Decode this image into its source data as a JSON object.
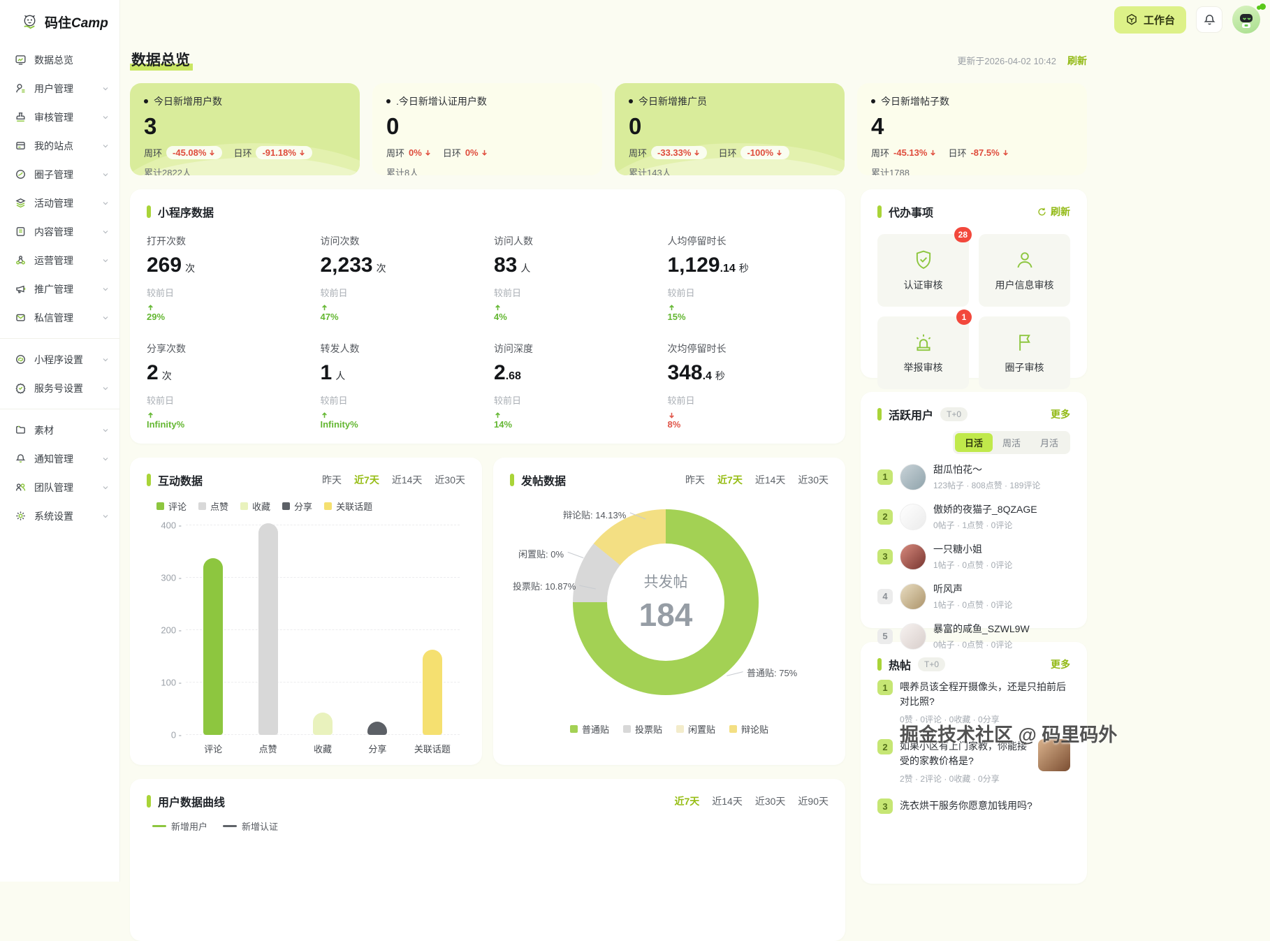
{
  "header": {
    "logo_cn": "码住Camp_cn_unused",
    "logo_main": "码住",
    "logo_en": "Camp",
    "workbench_label": "工作台"
  },
  "sidebar": {
    "groups": [
      {
        "items": [
          {
            "label": "数据总览",
            "icon": "monitor",
            "chevron": false
          },
          {
            "label": "用户管理",
            "icon": "user",
            "chevron": true
          },
          {
            "label": "审核管理",
            "icon": "stamp",
            "chevron": true
          },
          {
            "label": "我的站点",
            "icon": "site",
            "chevron": true
          },
          {
            "label": "圈子管理",
            "icon": "circle",
            "chevron": true
          },
          {
            "label": "活动管理",
            "icon": "layers",
            "chevron": true
          },
          {
            "label": "内容管理",
            "icon": "doc",
            "chevron": true
          },
          {
            "label": "运营管理",
            "icon": "nodes",
            "chevron": true
          },
          {
            "label": "推广管理",
            "icon": "megaphone",
            "chevron": true
          },
          {
            "label": "私信管理",
            "icon": "mail",
            "chevron": true
          }
        ]
      },
      {
        "items": [
          {
            "label": "小程序设置",
            "icon": "mini",
            "chevron": true
          },
          {
            "label": "服务号设置",
            "icon": "badge",
            "chevron": true
          }
        ]
      },
      {
        "items": [
          {
            "label": "素材",
            "icon": "folder",
            "chevron": true
          },
          {
            "label": "通知管理",
            "icon": "bell",
            "chevron": true
          },
          {
            "label": "团队管理",
            "icon": "team",
            "chevron": true
          },
          {
            "label": "系统设置",
            "icon": "gear",
            "chevron": true
          }
        ]
      }
    ]
  },
  "page": {
    "title": "数据总览",
    "updated": "更新于2026-04-02 10:42",
    "refresh_label": "刷新"
  },
  "stat_cards": [
    {
      "label": "今日新增用户数",
      "value": "3",
      "week_label": "周环",
      "week": "-45.08%",
      "day_label": "日环",
      "day": "-91.18%",
      "total": "累计2822人",
      "green": true
    },
    {
      "label": ".今日新增认证用户数",
      "value": "0",
      "week_label": "周环",
      "week": "0%",
      "day_label": "日环",
      "day": "0%",
      "total": "累计8人",
      "green": false
    },
    {
      "label": "今日新增推广员",
      "value": "0",
      "week_label": "周环",
      "week": "-33.33%",
      "day_label": "日环",
      "day": "-100%",
      "total": "累计143人",
      "green": true
    },
    {
      "label": "今日新增帖子数",
      "value": "4",
      "week_label": "周环",
      "week": "-45.13%",
      "day_label": "日环",
      "day": "-87.5%",
      "total": "累计1788",
      "green": false
    }
  ],
  "mini_program": {
    "title": "小程序数据",
    "metrics": [
      {
        "label": "打开次数",
        "main": "269",
        "sub": "",
        "unit": "次",
        "cmp": "较前日",
        "delta": "29%",
        "dir": "up"
      },
      {
        "label": "访问次数",
        "main": "2,233",
        "sub": "",
        "unit": "次",
        "cmp": "较前日",
        "delta": "47%",
        "dir": "up"
      },
      {
        "label": "访问人数",
        "main": "83",
        "sub": "",
        "unit": "人",
        "cmp": "较前日",
        "delta": "4%",
        "dir": "up"
      },
      {
        "label": "人均停留时长",
        "main": "1,129",
        "sub": ".14",
        "unit": "秒",
        "cmp": "较前日",
        "delta": "15%",
        "dir": "up"
      },
      {
        "label": "分享次数",
        "main": "2",
        "sub": "",
        "unit": "次",
        "cmp": "较前日",
        "delta": "Infinity%",
        "dir": "up"
      },
      {
        "label": "转发人数",
        "main": "1",
        "sub": "",
        "unit": "人",
        "cmp": "较前日",
        "delta": "Infinity%",
        "dir": "up"
      },
      {
        "label": "访问深度",
        "main": "2",
        "sub": ".68",
        "unit": "",
        "cmp": "较前日",
        "delta": "14%",
        "dir": "up"
      },
      {
        "label": "次均停留时长",
        "main": "348",
        "sub": ".4",
        "unit": "秒",
        "cmp": "较前日",
        "delta": "8%",
        "dir": "down"
      }
    ]
  },
  "chart_data": [
    {
      "type": "bar",
      "title": "互动数据",
      "period_tabs": [
        "昨天",
        "近7天",
        "近14天",
        "近30天"
      ],
      "active_tab": "近7天",
      "categories": [
        "评论",
        "点赞",
        "收藏",
        "分享",
        "关联话题"
      ],
      "values": [
        337,
        404,
        42,
        25,
        163
      ],
      "colors": [
        "#8dc63f",
        "#d8d8d8",
        "#e9f2bd",
        "#5c6066",
        "#f5e070"
      ],
      "ylim": [
        0,
        400
      ],
      "yticks": [
        0,
        100,
        200,
        300,
        400
      ],
      "grid": "dashed-horizontal",
      "legend_position": "top"
    },
    {
      "type": "pie",
      "title": "发帖数据",
      "period_tabs": [
        "昨天",
        "近7天",
        "近14天",
        "近30天"
      ],
      "active_tab": "近7天",
      "center_label": "共发帖",
      "center_value": "184",
      "slices": [
        {
          "label": "普通贴",
          "pct": 75,
          "color": "#a3d154"
        },
        {
          "label": "投票贴",
          "pct": 10.87,
          "color": "#d8d8d8"
        },
        {
          "label": "闲置贴",
          "pct": 0,
          "color": "#f3eccb"
        },
        {
          "label": "辩论贴",
          "pct": 14.13,
          "color": "#f3df83"
        }
      ],
      "callouts": [
        "辩论贴: 14.13%",
        "闲置贴: 0%",
        "投票贴: 10.87%",
        "普通贴: 75%"
      ],
      "legend": [
        "普通贴",
        "投票贴",
        "闲置贴",
        "辩论贴"
      ],
      "legend_position": "bottom"
    },
    {
      "type": "line",
      "title": "用户数据曲线",
      "period_tabs": [
        "近7天",
        "近14天",
        "近30天",
        "近90天"
      ],
      "active_tab": "近7天",
      "series": [
        {
          "name": "新增用户",
          "color": "#8dc63f"
        },
        {
          "name": "新增认证",
          "color": "#5f6368"
        }
      ]
    }
  ],
  "todo": {
    "title": "代办事项",
    "refresh_label": "刷新",
    "items": [
      {
        "label": "认证审核",
        "icon": "shield-check",
        "badge": "28"
      },
      {
        "label": "用户信息审核",
        "icon": "person",
        "badge": ""
      },
      {
        "label": "举报审核",
        "icon": "siren",
        "badge": "1"
      },
      {
        "label": "圈子审核",
        "icon": "flag",
        "badge": ""
      }
    ]
  },
  "active_users": {
    "title": "活跃用户",
    "tag": "T+0",
    "more_label": "更多",
    "tabs": [
      "日活",
      "周活",
      "月活"
    ],
    "active_tab": "日活",
    "users": [
      {
        "rank": "1",
        "name": "甜瓜怕花～",
        "stats": "123帖子 · 808点赞 · 189评论",
        "avatar_bg": "linear-gradient(135deg,#c9d3d8,#8fa3ab)"
      },
      {
        "rank": "2",
        "name": "傲娇的夜猫子_8QZAGE",
        "stats": "0帖子 · 1点赞 · 0评论",
        "avatar_bg": "linear-gradient(135deg,#ffffff,#ebebeb)"
      },
      {
        "rank": "3",
        "name": "一只糖小姐",
        "stats": "1帖子 · 0点赞 · 0评论",
        "avatar_bg": "linear-gradient(135deg,#d88a7e,#77352f)"
      },
      {
        "rank": "4",
        "name": "听风声",
        "stats": "1帖子 · 0点赞 · 0评论",
        "avatar_bg": "linear-gradient(135deg,#e9ddc2,#ac946a)"
      },
      {
        "rank": "5",
        "name": "暴富的咸鱼_SZWL9W",
        "stats": "0帖子 · 0点赞 · 0评论",
        "avatar_bg": "linear-gradient(135deg,#f7f2f0,#d8cecb)"
      }
    ]
  },
  "hot_posts": {
    "title": "热帖",
    "tag": "T+0",
    "more_label": "更多",
    "posts": [
      {
        "rank": "1",
        "title": "喂养员该全程开摄像头，还是只拍前后对比照?",
        "stats": "0赞 · 0评论 · 0收藏 · 0分享",
        "thumb": false
      },
      {
        "rank": "2",
        "title": "如果小区有上门家教，你能接受的家教价格是?",
        "stats": "2赞 · 2评论 · 0收藏 · 0分享",
        "thumb": true
      },
      {
        "rank": "3",
        "title": "洗衣烘干服务你愿意加钱用吗?",
        "stats": "",
        "thumb": false
      }
    ]
  },
  "watermark": "掘金技术社区 @ 码里码外",
  "colors": {
    "accent_green": "#93ba17",
    "card_green": "#d9ec9b",
    "badge_red": "#f2483c",
    "active_pill": "#c0e94b"
  }
}
